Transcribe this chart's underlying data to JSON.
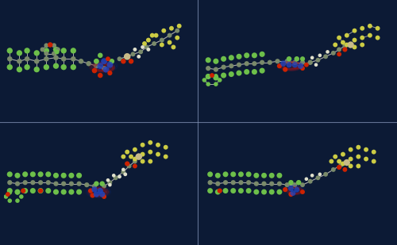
{
  "bg_color": "#0c1a35",
  "panel_bg": "#0c1a35",
  "figure_width": 5.0,
  "figure_height": 3.09,
  "dpi": 100,
  "separator_color": "#8899bb",
  "separator_lw": 0.8,
  "atom_colors": {
    "C": "#7a8a6a",
    "Cl": "#6dbf4a",
    "O": "#cc2200",
    "N": "#2244bb",
    "H": "#e0e0cc",
    "F": "#8ccc55",
    "S": "#cccc44",
    "metal": "#c8bb88",
    "blue_density": "#1133bb",
    "red_density": "#bb1100"
  }
}
